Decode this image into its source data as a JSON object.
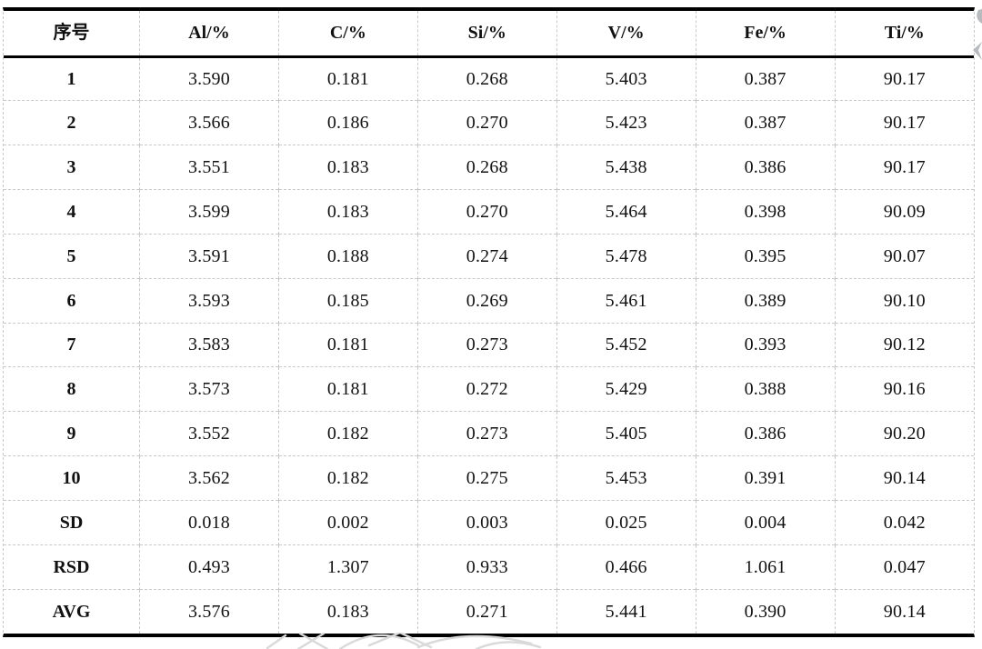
{
  "chart_data": {
    "type": "table",
    "title": "",
    "columns": [
      "序号",
      "Al/%",
      "C/%",
      "Si/%",
      "V/%",
      "Fe/%",
      "Ti/%"
    ],
    "rows": [
      {
        "label": "1",
        "values": [
          "3.590",
          "0.181",
          "0.268",
          "5.403",
          "0.387",
          "90.17"
        ]
      },
      {
        "label": "2",
        "values": [
          "3.566",
          "0.186",
          "0.270",
          "5.423",
          "0.387",
          "90.17"
        ]
      },
      {
        "label": "3",
        "values": [
          "3.551",
          "0.183",
          "0.268",
          "5.438",
          "0.386",
          "90.17"
        ]
      },
      {
        "label": "4",
        "values": [
          "3.599",
          "0.183",
          "0.270",
          "5.464",
          "0.398",
          "90.09"
        ]
      },
      {
        "label": "5",
        "values": [
          "3.591",
          "0.188",
          "0.274",
          "5.478",
          "0.395",
          "90.07"
        ]
      },
      {
        "label": "6",
        "values": [
          "3.593",
          "0.185",
          "0.269",
          "5.461",
          "0.389",
          "90.10"
        ]
      },
      {
        "label": "7",
        "values": [
          "3.583",
          "0.181",
          "0.273",
          "5.452",
          "0.393",
          "90.12"
        ]
      },
      {
        "label": "8",
        "values": [
          "3.573",
          "0.181",
          "0.272",
          "5.429",
          "0.388",
          "90.16"
        ]
      },
      {
        "label": "9",
        "values": [
          "3.552",
          "0.182",
          "0.273",
          "5.405",
          "0.386",
          "90.20"
        ]
      },
      {
        "label": "10",
        "values": [
          "3.562",
          "0.182",
          "0.275",
          "5.453",
          "0.391",
          "90.14"
        ]
      },
      {
        "label": "SD",
        "values": [
          "0.018",
          "0.002",
          "0.003",
          "0.025",
          "0.004",
          "0.042"
        ]
      },
      {
        "label": "RSD",
        "values": [
          "0.493",
          "1.307",
          "0.933",
          "0.466",
          "1.061",
          "0.047"
        ]
      },
      {
        "label": "AVG",
        "values": [
          "3.576",
          "0.183",
          "0.271",
          "5.441",
          "0.390",
          "90.14"
        ]
      }
    ],
    "layout": {
      "grid": "dashed-light",
      "outer_borders": "thick-black-top-bottom",
      "header_separator": "thick-black"
    }
  },
  "colors": {
    "border_strong": "#000000",
    "grid_dashed": "#c9c9c9",
    "text": "#111111",
    "watermark": "#d9d9d9",
    "edge_glyph": "#b7bbbf"
  }
}
